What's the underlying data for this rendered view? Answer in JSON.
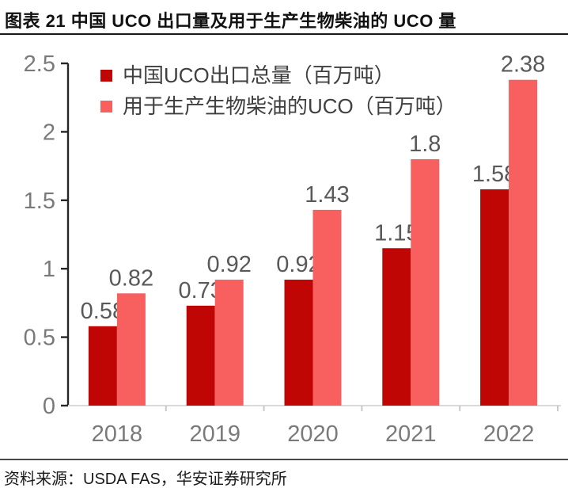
{
  "header": {
    "title": "图表 21 中国 UCO 出口量及用于生产生物柴油的 UCO 量"
  },
  "chart_data": {
    "type": "bar",
    "title": "图表 21 中国 UCO 出口量及用于生产生物柴油的 UCO 量",
    "categories": [
      "2018",
      "2019",
      "2020",
      "2021",
      "2022"
    ],
    "series": [
      {
        "name": "中国UCO出口总量（百万吨）",
        "color": "#c00505",
        "values": [
          0.58,
          0.73,
          0.92,
          1.15,
          1.58
        ]
      },
      {
        "name": "用于生产生物柴油的UCO（百万吨）",
        "color": "#f85f5f",
        "values": [
          0.82,
          0.92,
          1.43,
          1.8,
          2.38
        ]
      }
    ],
    "ylim": [
      0,
      2.5
    ],
    "yticks": [
      0,
      0.5,
      1,
      1.5,
      2,
      2.5
    ],
    "grid": false,
    "legend_position": "top-left",
    "value_labels": true,
    "colors": {
      "axis_line": "#262626",
      "baseline": "#d9d9d9",
      "boundary_tick": "#c9c9c9",
      "tick_label": "#7a7a7a",
      "value_label": "#595959"
    }
  },
  "footer": {
    "source": "资料来源：USDA FAS，华安证券研究所"
  }
}
